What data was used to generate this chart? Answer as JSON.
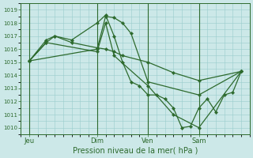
{
  "xlabel": "Pression niveau de la mer( hPa )",
  "bg_color": "#cce8e8",
  "grid_color": "#99cccc",
  "line_color": "#2d6a2d",
  "marker_color": "#2d6a2d",
  "ylim": [
    1009.5,
    1019.5
  ],
  "yticks": [
    1010,
    1011,
    1012,
    1013,
    1014,
    1015,
    1016,
    1017,
    1018,
    1019
  ],
  "xtick_labels": [
    "Jeu",
    "Dim",
    "Ven",
    "Sam"
  ],
  "xtick_positions": [
    1,
    9,
    15,
    21
  ],
  "vline_positions": [
    1,
    9,
    15,
    21
  ],
  "xlim": [
    0,
    27
  ],
  "series": [
    {
      "x": [
        1,
        3,
        4,
        6,
        9,
        10,
        11,
        12,
        13,
        14,
        15,
        16,
        17,
        18,
        19,
        20,
        21,
        22,
        23,
        24,
        25,
        26
      ],
      "y": [
        1015.1,
        1016.7,
        1017.0,
        1016.7,
        1018.0,
        1018.6,
        1017.0,
        1015.0,
        1013.5,
        1013.2,
        1012.5,
        1012.5,
        1012.2,
        1011.5,
        1010.0,
        1010.1,
        1011.5,
        1012.2,
        1011.2,
        1012.5,
        1012.7,
        1014.3
      ]
    },
    {
      "x": [
        1,
        3,
        4,
        6,
        9,
        10,
        11,
        12,
        15,
        18,
        21,
        26
      ],
      "y": [
        1015.1,
        1016.5,
        1017.0,
        1016.5,
        1016.1,
        1016.0,
        1015.8,
        1015.5,
        1015.0,
        1014.2,
        1013.6,
        1014.3
      ]
    },
    {
      "x": [
        1,
        9,
        10,
        11,
        12,
        13,
        15,
        21,
        26
      ],
      "y": [
        1015.1,
        1016.0,
        1018.5,
        1018.4,
        1018.0,
        1017.2,
        1013.5,
        1012.5,
        1014.3
      ]
    },
    {
      "x": [
        1,
        3,
        9,
        10,
        11,
        15,
        18,
        21,
        26
      ],
      "y": [
        1015.1,
        1016.5,
        1015.8,
        1018.0,
        1015.5,
        1013.2,
        1011.0,
        1010.0,
        1014.3
      ]
    }
  ]
}
